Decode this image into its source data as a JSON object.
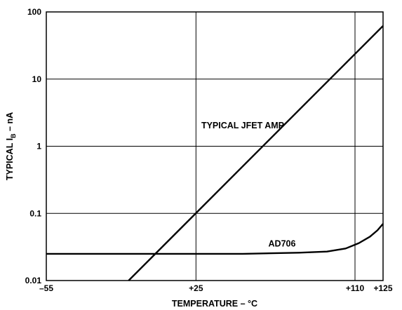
{
  "chart_data": {
    "type": "line",
    "title": "",
    "xlabel": "TEMPERATURE – °C",
    "ylabel": {
      "main": "TYPICAL I",
      "subscript": "B",
      "suffix": " – nA"
    },
    "x_scale": "linear",
    "y_scale": "log",
    "xlim": [
      -55,
      125
    ],
    "ylim": [
      0.01,
      100
    ],
    "x_ticks": [
      {
        "value": -55,
        "label": "–55"
      },
      {
        "value": 25,
        "label": "+25"
      },
      {
        "value": 110,
        "label": "+110"
      },
      {
        "value": 125,
        "label": "+125"
      }
    ],
    "y_ticks": [
      {
        "value": 0.01,
        "label": "0.01"
      },
      {
        "value": 0.1,
        "label": "0.1"
      },
      {
        "value": 1,
        "label": "1"
      },
      {
        "value": 10,
        "label": "10"
      },
      {
        "value": 100,
        "label": "100"
      }
    ],
    "x_gridlines": [
      25,
      110
    ],
    "y_gridlines": [
      0.1,
      1,
      10
    ],
    "grid": true,
    "legend": "none",
    "series": [
      {
        "name": "TYPICAL JFET AMP",
        "label_at": {
          "x": 50,
          "y": 1.85
        },
        "x": [
          -11,
          125
        ],
        "y": [
          0.01,
          62
        ]
      },
      {
        "name": "AD706",
        "label_at": {
          "x": 71,
          "y": 0.032
        },
        "x": [
          -55,
          0,
          50,
          80,
          95,
          105,
          112,
          118,
          122,
          125
        ],
        "y": [
          0.025,
          0.025,
          0.025,
          0.026,
          0.027,
          0.03,
          0.036,
          0.045,
          0.056,
          0.07
        ]
      }
    ],
    "line_color": "#000000",
    "grid_color": "#000000"
  }
}
